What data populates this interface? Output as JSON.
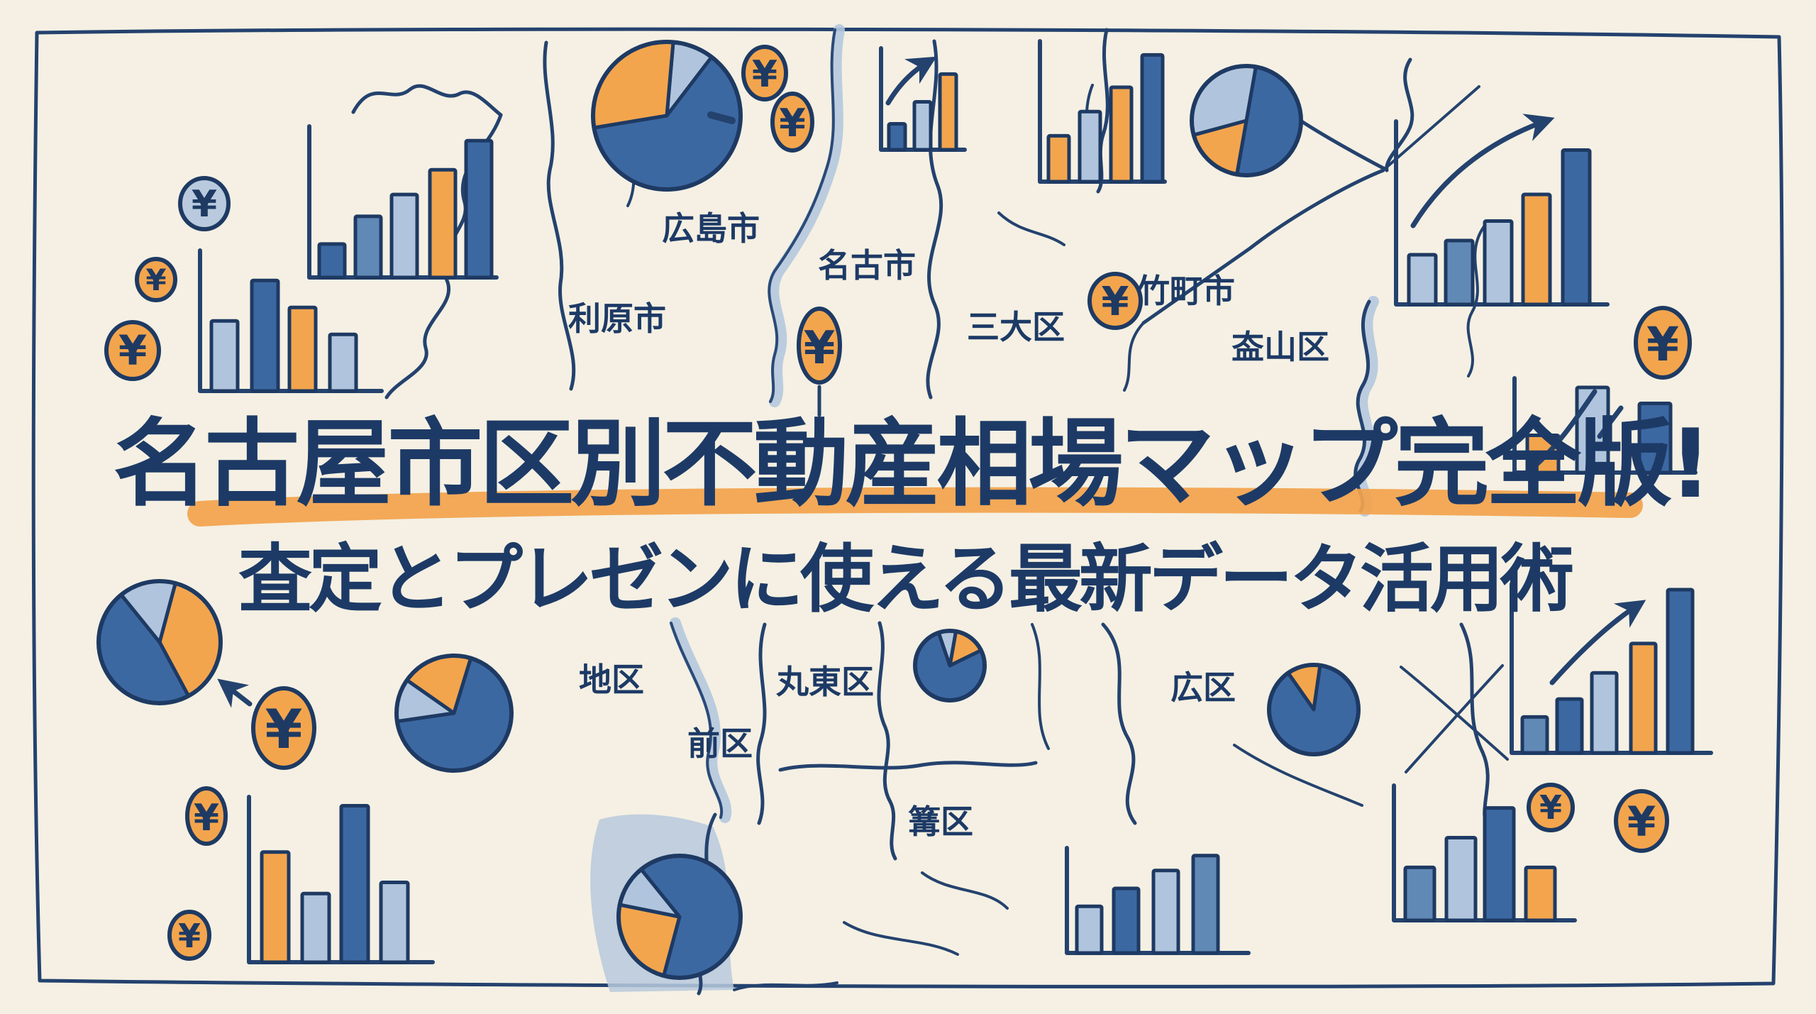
{
  "title": "名古屋市区別不動産相場マップ完全版!",
  "subtitle": "査定とプレゼンに使える最新データ活用術",
  "icons": {
    "yen": "¥"
  },
  "colors": {
    "background": "#f5f0e3",
    "ink_navy": "#1e3a63",
    "bar_dark_blue": "#3c68a2",
    "bar_steel_blue": "#6189b6",
    "bar_light_blue": "#b0c5dd",
    "accent_orange": "#f3a54d",
    "river_blue": "#b5c8de"
  },
  "map_labels": {
    "top": [
      {
        "id": "hiroshima",
        "text": "広島市"
      },
      {
        "id": "nago",
        "text": "名古市"
      },
      {
        "id": "rihara",
        "text": "利原市"
      },
      {
        "id": "sandai",
        "text": "三大区"
      },
      {
        "id": "takemachi",
        "text": "竹町市"
      },
      {
        "id": "kiyama",
        "text": "盇山区"
      }
    ],
    "bottom": [
      {
        "id": "chiku",
        "text": "地区"
      },
      {
        "id": "maruto",
        "text": "丸東区"
      },
      {
        "id": "maeku",
        "text": "前区"
      },
      {
        "id": "hiroku",
        "text": "広区"
      },
      {
        "id": "kagariku",
        "text": "篝区"
      }
    ]
  },
  "chart_data": [
    {
      "id": "bars-top-left",
      "type": "bar",
      "values": [
        23,
        42,
        57,
        74,
        94
      ],
      "colors": [
        "dark",
        "steel",
        "light",
        "orange",
        "dark"
      ]
    },
    {
      "id": "bars-left",
      "type": "bar",
      "values": [
        52,
        82,
        62,
        42
      ],
      "colors": [
        "light",
        "dark",
        "orange",
        "light"
      ]
    },
    {
      "id": "bars-small-arrow",
      "type": "bar",
      "values": [
        27,
        50,
        79
      ],
      "colors": [
        "dark",
        "light",
        "orange"
      ],
      "arrow": true
    },
    {
      "id": "bars-top-mid",
      "type": "bar",
      "values": [
        34,
        52,
        70,
        94
      ],
      "colors": [
        "orange",
        "light",
        "orange",
        "dark"
      ]
    },
    {
      "id": "bars-top-right",
      "type": "bar",
      "values": [
        28,
        36,
        47,
        62,
        87
      ],
      "colors": [
        "light",
        "steel",
        "light",
        "orange",
        "dark"
      ],
      "arrow": true
    },
    {
      "id": "bars-right-mid",
      "type": "bar",
      "values": [
        42,
        96,
        78
      ],
      "colors": [
        "orange",
        "light",
        "dark"
      ]
    },
    {
      "id": "bars-right-tall",
      "type": "bar",
      "values": [
        22,
        33,
        49,
        67,
        100
      ],
      "colors": [
        "steel",
        "dark",
        "light",
        "orange",
        "dark"
      ],
      "arrow": true
    },
    {
      "id": "bars-bottom-right",
      "type": "bar",
      "values": [
        41,
        64,
        87,
        41
      ],
      "colors": [
        "steel",
        "light",
        "dark",
        "orange"
      ]
    },
    {
      "id": "bars-bottom-mid",
      "type": "bar",
      "values": [
        47,
        65,
        83,
        98
      ],
      "colors": [
        "light",
        "dark",
        "light",
        "steel"
      ]
    },
    {
      "id": "bars-bottom-left",
      "type": "bar",
      "values": [
        69,
        43,
        98,
        50
      ],
      "colors": [
        "orange",
        "light",
        "dark",
        "light"
      ]
    },
    {
      "id": "pie-top",
      "type": "pie",
      "start": 5,
      "slices": [
        {
          "color": "light",
          "pct": 9
        },
        {
          "color": "dark",
          "pct": 62
        },
        {
          "color": "orange",
          "pct": 29
        }
      ]
    },
    {
      "id": "pie-top-right",
      "type": "pie",
      "start": 10,
      "slices": [
        {
          "color": "dark",
          "pct": 50
        },
        {
          "color": "orange",
          "pct": 18
        },
        {
          "color": "light",
          "pct": 32
        }
      ]
    },
    {
      "id": "pie-left",
      "type": "pie",
      "start": 15,
      "slices": [
        {
          "color": "orange",
          "pct": 38
        },
        {
          "color": "dark",
          "pct": 47
        },
        {
          "color": "light",
          "pct": 15
        }
      ]
    },
    {
      "id": "pie-mid",
      "type": "pie",
      "start": 305,
      "slices": [
        {
          "color": "orange",
          "pct": 20
        },
        {
          "color": "dark",
          "pct": 68
        },
        {
          "color": "light",
          "pct": 12
        }
      ]
    },
    {
      "id": "pie-small",
      "type": "pie",
      "start": 10,
      "slices": [
        {
          "color": "orange",
          "pct": 15
        },
        {
          "color": "dark",
          "pct": 77
        },
        {
          "color": "light",
          "pct": 8
        }
      ]
    },
    {
      "id": "pie-hiroku",
      "type": "pie",
      "start": 325,
      "slices": [
        {
          "color": "orange",
          "pct": 12
        },
        {
          "color": "dark",
          "pct": 88
        }
      ]
    },
    {
      "id": "pie-bottom",
      "type": "pie",
      "start": 195,
      "slices": [
        {
          "color": "orange",
          "pct": 24
        },
        {
          "color": "light",
          "pct": 11
        },
        {
          "color": "dark",
          "pct": 65
        }
      ]
    }
  ]
}
